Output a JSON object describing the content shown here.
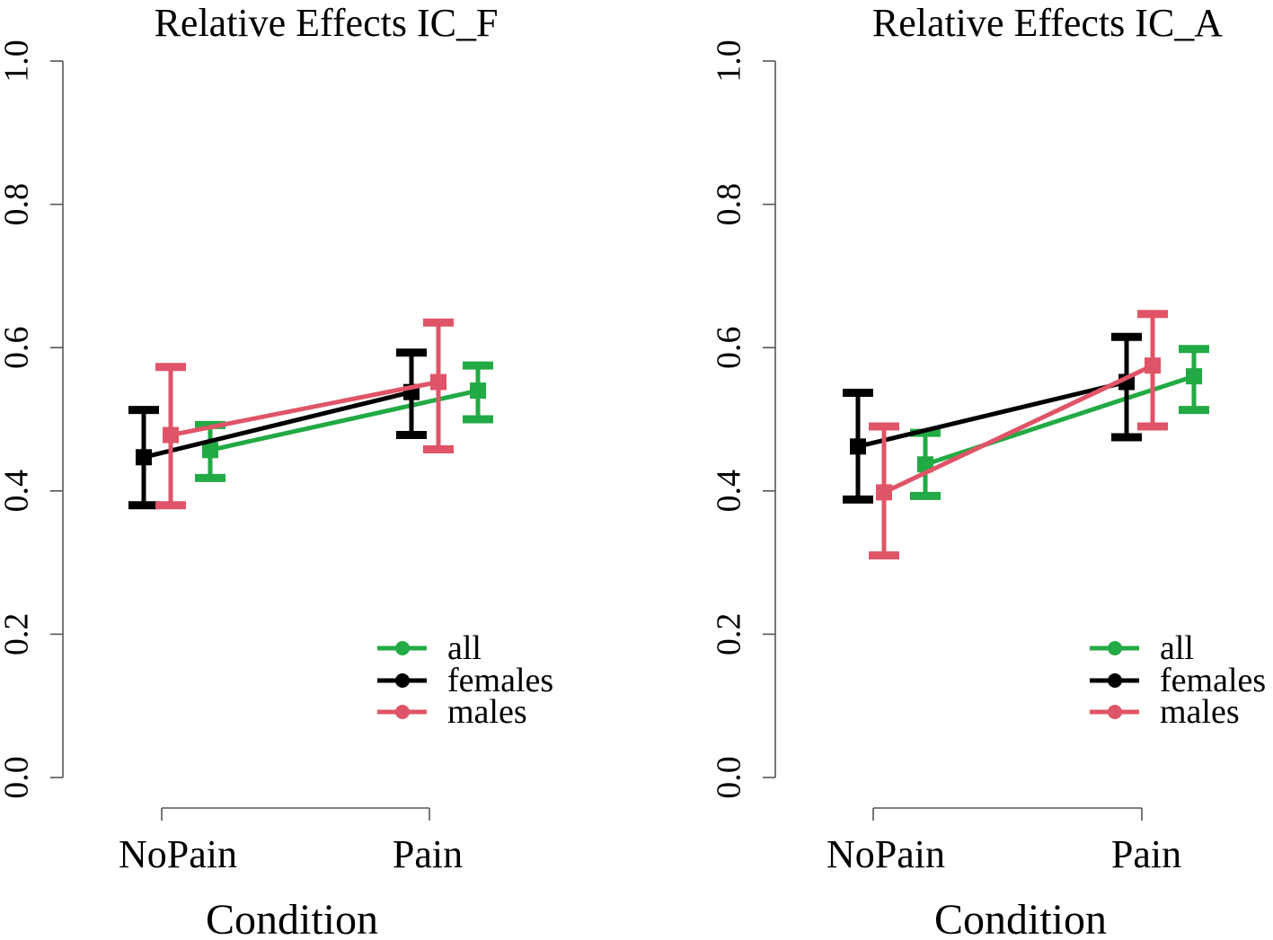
{
  "colors": {
    "all": "#22aa44",
    "females": "#000000",
    "males": "#e05468",
    "axis": "#555555"
  },
  "chart_data": [
    {
      "type": "line",
      "title": "Relative Effects  IC_F",
      "xlabel": "Condition",
      "ylabel": "",
      "categories": [
        "NoPain",
        "Pain"
      ],
      "ylim": [
        0.0,
        1.0
      ],
      "yticks": [
        "0.0",
        "0.2",
        "0.4",
        "0.6",
        "0.8",
        "1.0"
      ],
      "legend": {
        "position": "bottom-right",
        "entries": [
          "all",
          "females",
          "males"
        ]
      },
      "series": [
        {
          "name": "all",
          "color_key": "all",
          "values": [
            0.457,
            0.54
          ],
          "lower": [
            0.418,
            0.5
          ],
          "upper": [
            0.492,
            0.575
          ]
        },
        {
          "name": "females",
          "color_key": "females",
          "values": [
            0.447,
            0.538
          ],
          "lower": [
            0.38,
            0.478
          ],
          "upper": [
            0.513,
            0.593
          ]
        },
        {
          "name": "males",
          "color_key": "males",
          "values": [
            0.478,
            0.552
          ],
          "lower": [
            0.38,
            0.458
          ],
          "upper": [
            0.573,
            0.635
          ]
        }
      ]
    },
    {
      "type": "line",
      "title": "Relative Effects   IC_A",
      "xlabel": "Condition",
      "ylabel": "",
      "categories": [
        "NoPain",
        "Pain"
      ],
      "ylim": [
        0.0,
        1.0
      ],
      "yticks": [
        "0.0",
        "0.2",
        "0.4",
        "0.6",
        "0.8",
        "1.0"
      ],
      "legend": {
        "position": "bottom-right",
        "entries": [
          "all",
          "females",
          "males"
        ]
      },
      "series": [
        {
          "name": "all",
          "color_key": "all",
          "values": [
            0.437,
            0.56
          ],
          "lower": [
            0.393,
            0.513
          ],
          "upper": [
            0.481,
            0.598
          ]
        },
        {
          "name": "females",
          "color_key": "females",
          "values": [
            0.462,
            0.552
          ],
          "lower": [
            0.388,
            0.475
          ],
          "upper": [
            0.537,
            0.615
          ]
        },
        {
          "name": "males",
          "color_key": "males",
          "values": [
            0.398,
            0.575
          ],
          "lower": [
            0.31,
            0.49
          ],
          "upper": [
            0.49,
            0.647
          ]
        }
      ]
    }
  ]
}
